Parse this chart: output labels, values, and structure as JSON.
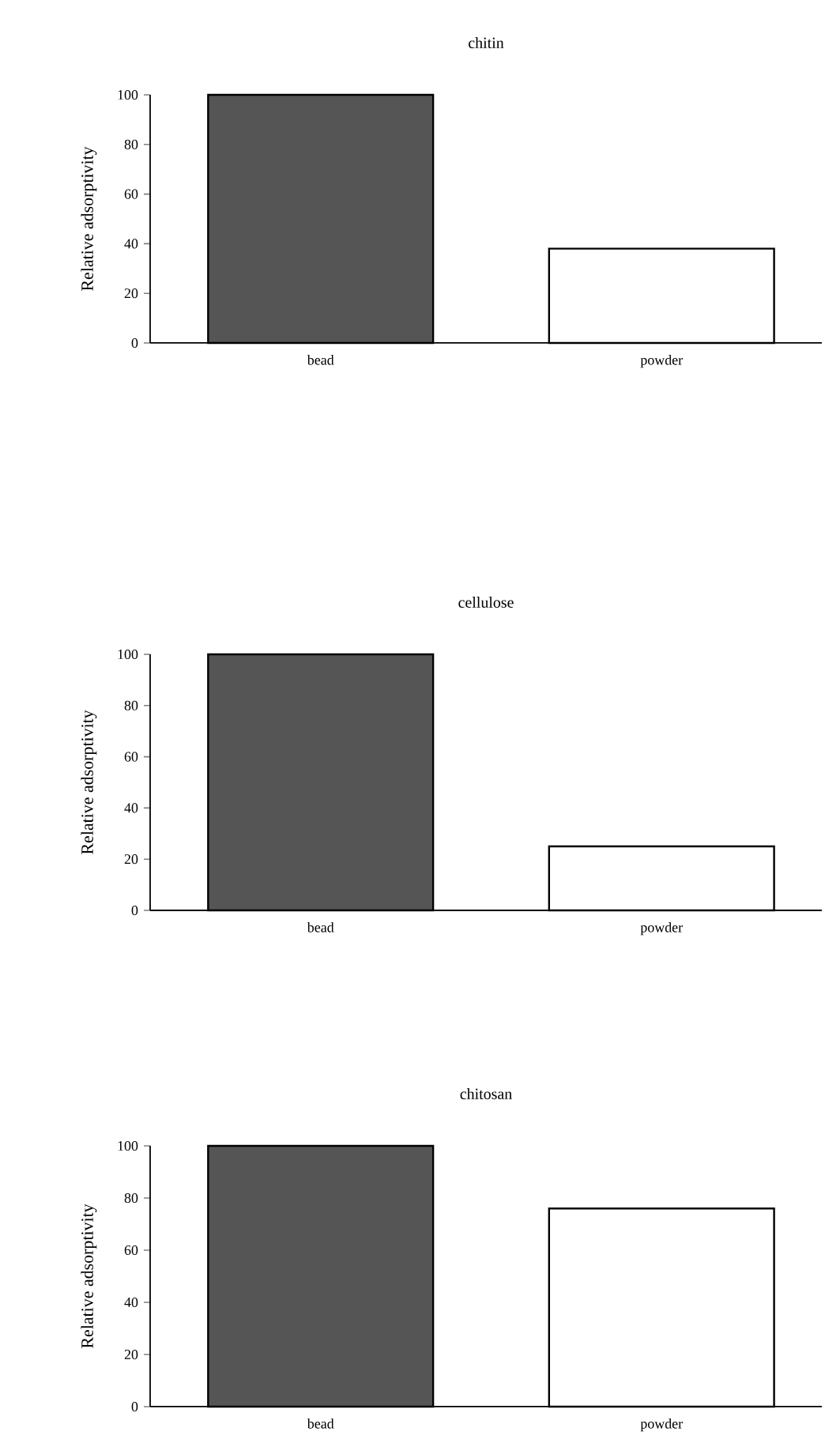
{
  "chart_data": [
    {
      "type": "bar",
      "title": "chitin",
      "ylabel": "Relative adsorptivity",
      "categories": [
        "bead",
        "powder"
      ],
      "values": [
        100,
        38
      ],
      "colors": [
        "#555555",
        "#ffffff"
      ],
      "ylim": [
        0,
        100
      ],
      "yticks": [
        0,
        20,
        40,
        60,
        80,
        100
      ]
    },
    {
      "type": "bar",
      "title": "cellulose",
      "ylabel": "Relative adsorptivity",
      "categories": [
        "bead",
        "powder"
      ],
      "values": [
        100,
        25
      ],
      "colors": [
        "#555555",
        "#ffffff"
      ],
      "ylim": [
        0,
        100
      ],
      "yticks": [
        0,
        20,
        40,
        60,
        80,
        100
      ]
    },
    {
      "type": "bar",
      "title": "chitosan",
      "ylabel": "Relative adsorptivity",
      "categories": [
        "bead",
        "powder"
      ],
      "values": [
        100,
        76
      ],
      "colors": [
        "#555555",
        "#ffffff"
      ],
      "ylim": [
        0,
        100
      ],
      "yticks": [
        0,
        20,
        40,
        60,
        80,
        100
      ]
    }
  ]
}
